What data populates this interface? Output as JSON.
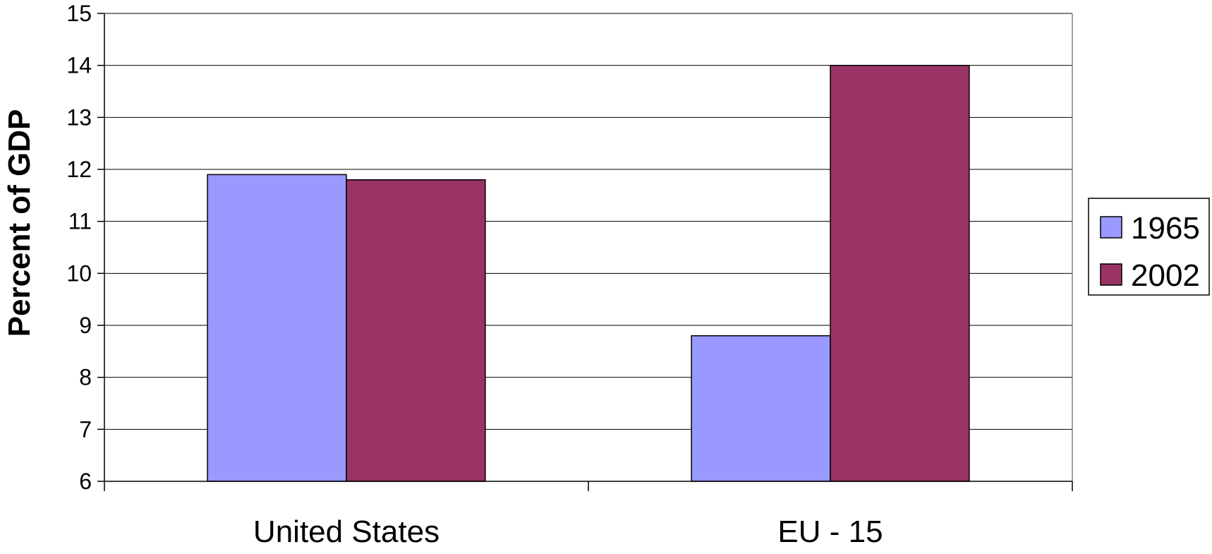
{
  "chart_data": {
    "type": "bar",
    "title": "",
    "xlabel": "",
    "ylabel": "Percent of GDP",
    "categories": [
      "United States",
      "EU - 15"
    ],
    "series": [
      {
        "name": "1965",
        "values": [
          11.9,
          8.8
        ],
        "color": "#9999ff"
      },
      {
        "name": "2002",
        "values": [
          11.8,
          14.0
        ],
        "color": "#993366"
      }
    ],
    "ylim": [
      6,
      15
    ],
    "yticks": [
      "6",
      "7",
      "8",
      "9",
      "10",
      "11",
      "12",
      "13",
      "14",
      "15"
    ],
    "grid": true,
    "legend_position": "right"
  }
}
